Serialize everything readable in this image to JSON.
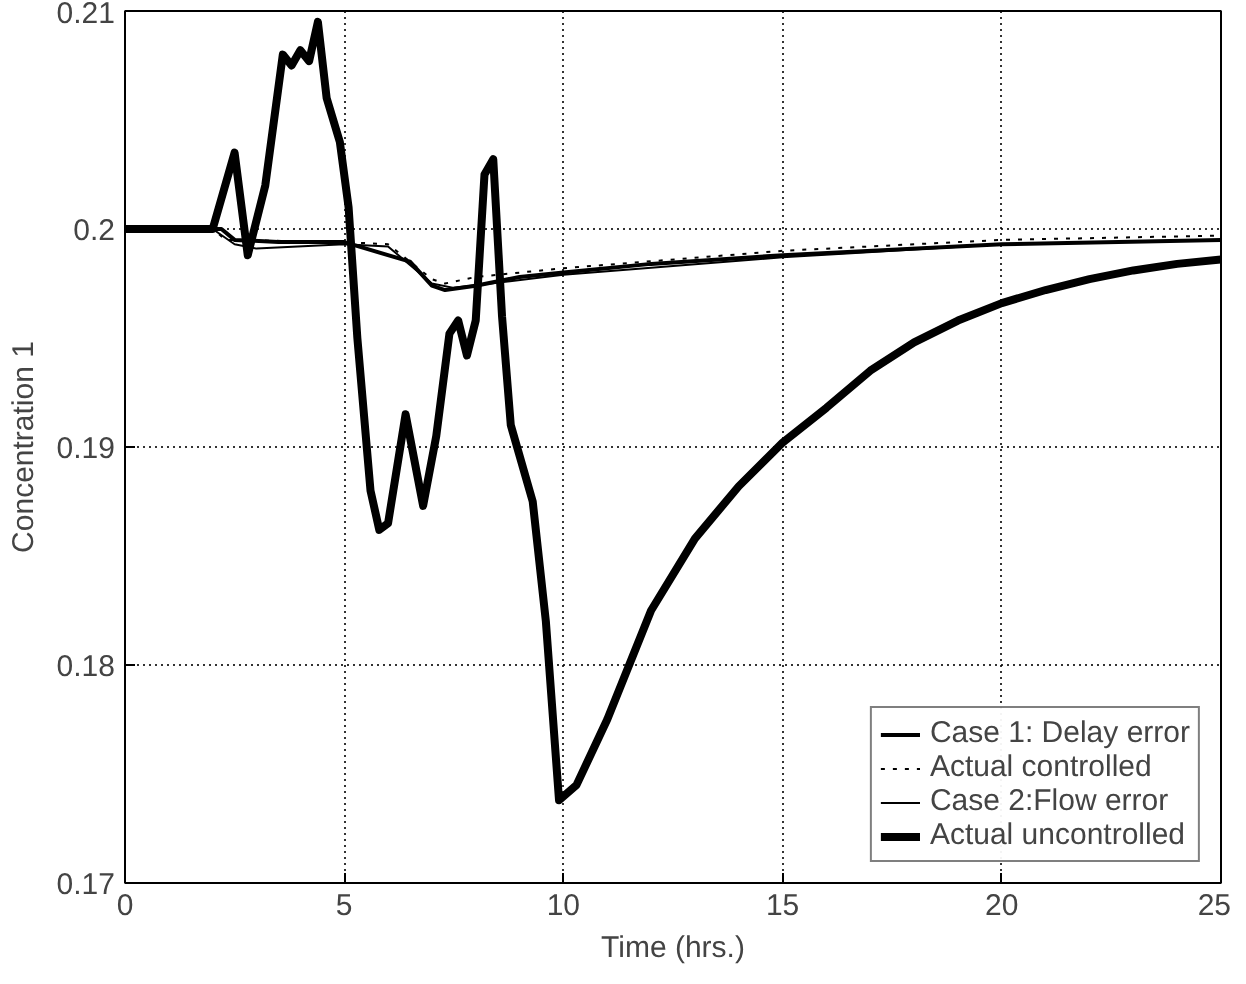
{
  "chart_data": {
    "type": "line",
    "xlabel": "Time (hrs.)",
    "ylabel": "Concentration 1",
    "xlim": [
      0,
      25
    ],
    "ylim": [
      0.17,
      0.21
    ],
    "xticks": [
      0,
      5,
      10,
      15,
      20,
      25
    ],
    "yticks": [
      0.17,
      0.18,
      0.19,
      0.2,
      0.21
    ],
    "grid": true,
    "legend": "bottom right",
    "line_style": "solid",
    "series": [
      {
        "name": "Case 1: Delay error",
        "color": "#000000",
        "x": [
          0,
          2.2,
          2.5,
          3.5,
          5,
          5.5,
          6.5,
          7,
          7.3,
          8,
          9,
          10,
          12,
          15,
          20,
          25
        ],
        "values": [
          0.2,
          0.2,
          0.1995,
          0.1994,
          0.1994,
          0.1991,
          0.1985,
          0.1974,
          0.1972,
          0.1974,
          0.1978,
          0.198,
          0.1984,
          0.1988,
          0.1993,
          0.1995
        ]
      },
      {
        "name": "Actual controlled",
        "color": "#000000",
        "line_style": "dotted",
        "x": [
          0,
          2,
          2.3,
          5,
          6,
          7,
          7.3,
          8,
          10,
          15,
          20,
          25
        ],
        "values": [
          0.2,
          0.2,
          0.1995,
          0.1994,
          0.1993,
          0.1977,
          0.1975,
          0.1978,
          0.1982,
          0.199,
          0.1995,
          0.1997
        ]
      },
      {
        "name": "Case 2:Flow error",
        "color": "#000000",
        "x": [
          0,
          2,
          2.5,
          3,
          5,
          6,
          7,
          7.5,
          10,
          15,
          20,
          25
        ],
        "values": [
          0.2,
          0.2,
          0.1993,
          0.1991,
          0.1993,
          0.1992,
          0.1975,
          0.1973,
          0.1979,
          0.1987,
          0.1993,
          0.1995
        ]
      },
      {
        "name": "Actual uncontrolled",
        "color": "#000000",
        "x": [
          0,
          2,
          2.5,
          2.8,
          3.2,
          3.6,
          3.8,
          4.0,
          4.2,
          4.4,
          4.6,
          4.9,
          5.1,
          5.3,
          5.6,
          5.8,
          6.0,
          6.4,
          6.8,
          7.1,
          7.4,
          7.6,
          7.8,
          8.0,
          8.2,
          8.4,
          8.6,
          8.8,
          9.3,
          9.6,
          9.9,
          10.3,
          11,
          12,
          13,
          14,
          15,
          16,
          17,
          18,
          19,
          20,
          21,
          22,
          23,
          24,
          25
        ],
        "values": [
          0.2,
          0.2,
          0.2035,
          0.1988,
          0.202,
          0.208,
          0.2075,
          0.2082,
          0.2077,
          0.2095,
          0.206,
          0.204,
          0.201,
          0.195,
          0.188,
          0.1862,
          0.1865,
          0.1915,
          0.1873,
          0.1905,
          0.1952,
          0.1958,
          0.1942,
          0.1958,
          0.2025,
          0.2032,
          0.196,
          0.191,
          0.1875,
          0.182,
          0.1738,
          0.1745,
          0.1775,
          0.1825,
          0.1858,
          0.1882,
          0.1902,
          0.1918,
          0.1935,
          0.1948,
          0.1958,
          0.1966,
          0.1972,
          0.1977,
          0.1981,
          0.1984,
          0.1986
        ]
      }
    ]
  }
}
